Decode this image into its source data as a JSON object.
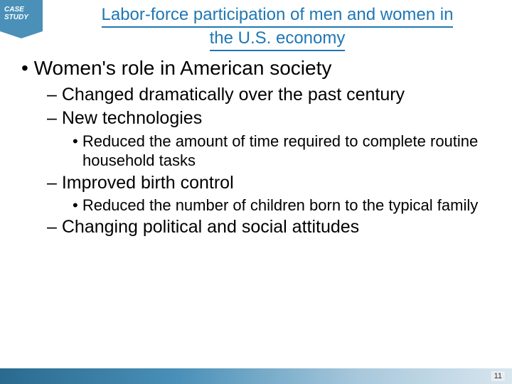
{
  "badge": {
    "line1": "CASE",
    "line2": "STUDY"
  },
  "title": {
    "line1": "Labor-force participation of men and women in",
    "line2": "the U.S. economy",
    "color": "#1f77b4",
    "underline_color": "#1f77b4",
    "fontsize": 24
  },
  "items": [
    {
      "level": 1,
      "bullet": "• ",
      "text": "Women's role in American society"
    },
    {
      "level": 2,
      "bullet": "– ",
      "text": "Changed dramatically over the past century"
    },
    {
      "level": 2,
      "bullet": "– ",
      "text": "New technologies"
    },
    {
      "level": 3,
      "bullet": "• ",
      "text": "Reduced the amount of time required to complete routine household tasks"
    },
    {
      "level": 2,
      "bullet": "– ",
      "text": "Improved birth control"
    },
    {
      "level": 3,
      "bullet": "• ",
      "text": "Reduced the number of children born to the typical family"
    },
    {
      "level": 2,
      "bullet": "– ",
      "text": "Changing political and social attitudes"
    }
  ],
  "page_number": "11",
  "colors": {
    "badge_bg": "#4a90b8",
    "badge_text": "#ffffff",
    "body_text": "#000000",
    "footer_gradient": [
      "#2a6a8f",
      "#4a90b8",
      "#a8c8dc",
      "#d8e6ee"
    ]
  },
  "fontsize": {
    "lvl1": 28,
    "lvl2": 25,
    "lvl3": 22
  }
}
